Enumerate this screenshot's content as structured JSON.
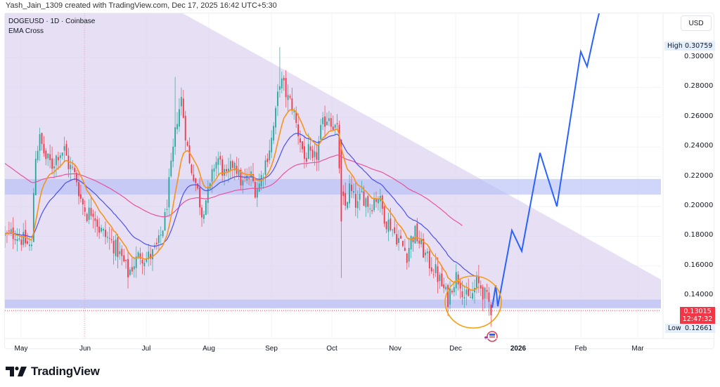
{
  "caption": "Yash_Jain_1309 created with TradingView.com, Dec 17, 2025 16:42 UTC+5:30",
  "legend": {
    "symbol_line": "DOGEUSD · 1D · Coinbase",
    "indicator": "EMA Cross"
  },
  "price_axis": {
    "currency": "USD",
    "ticks": [
      "0.30000",
      "0.28000",
      "0.26000",
      "0.24000",
      "0.22000",
      "0.20000",
      "0.18000",
      "0.16000",
      "0.14000"
    ],
    "high_label": "High",
    "high_value": "0.30759",
    "low_label": "Low",
    "low_value": "0.12661",
    "last_price": "0.13015",
    "countdown": "12:47:32"
  },
  "time_axis": {
    "labels": [
      "May",
      "Jun",
      "Jul",
      "Aug",
      "Sep",
      "Oct",
      "Nov",
      "Dec",
      "2026",
      "Feb",
      "Mar"
    ]
  },
  "brand": {
    "name": "TradingView"
  },
  "colors": {
    "up": "#26a69a",
    "down": "#f23645",
    "ema_fast": "#f7931a",
    "ema_slow": "#4b4ff0",
    "ema_long": "#e8539d",
    "zone": "#b3bdf5",
    "triangle": "#d9cdef",
    "projection": "#2962ff",
    "circle": "#f59e0b"
  },
  "chart_data": {
    "type": "candlestick",
    "title": "DOGEUSD · 1D · Coinbase",
    "indicators": [
      "EMA Cross (fast, slow)",
      "EMA long"
    ],
    "x_range": [
      "2025-04-25",
      "2026-03-25"
    ],
    "y_range": [
      0.118,
      0.318
    ],
    "ylabel": "USD",
    "price_series_approx": {
      "dates": [
        "Apr 28",
        "May 8",
        "May 12",
        "May 20",
        "May 27",
        "Jun 3",
        "Jun 15",
        "Jun 22",
        "Jul 5",
        "Jul 11",
        "Jul 21",
        "Aug 2",
        "Aug 12",
        "Aug 20",
        "Sep 1",
        "Sep 8",
        "Sep 13",
        "Sep 22",
        "Sep 30",
        "Oct 8",
        "Oct 10",
        "Oct 20",
        "Nov 1",
        "Nov 15",
        "Nov 24",
        "Dec 5",
        "Dec 17"
      ],
      "close": [
        0.18,
        0.17,
        0.24,
        0.225,
        0.22,
        0.195,
        0.17,
        0.155,
        0.17,
        0.22,
        0.28,
        0.2,
        0.23,
        0.215,
        0.22,
        0.25,
        0.29,
        0.26,
        0.24,
        0.265,
        0.19,
        0.205,
        0.18,
        0.17,
        0.15,
        0.145,
        0.13
      ]
    },
    "zones": [
      {
        "name": "resistance zone",
        "from": 0.208,
        "to": 0.218
      },
      {
        "name": "support zone",
        "from": 0.132,
        "to": 0.137
      }
    ],
    "descending_triangle": {
      "top_start": [
        "Apr 25",
        0.36
      ],
      "top_end": [
        "Mar 25",
        0.151
      ],
      "base": 0.132
    },
    "projection_path": [
      [
        "Dec 17",
        0.132
      ],
      [
        "Dec 21",
        0.147
      ],
      [
        "Dec 24",
        0.133
      ],
      [
        "Jan 4",
        0.184
      ],
      [
        "Jan 10",
        0.17
      ],
      [
        "Jan 21",
        0.236
      ],
      [
        "Jan 29",
        0.2
      ],
      [
        "Feb 10",
        0.304
      ],
      [
        "Feb 13",
        0.294
      ],
      [
        "Feb 17",
        0.32
      ]
    ],
    "annotations": [
      "High 0.30759",
      "Low 0.12661",
      "Last 0.13015",
      "orange circle around Dec consolidation"
    ]
  }
}
